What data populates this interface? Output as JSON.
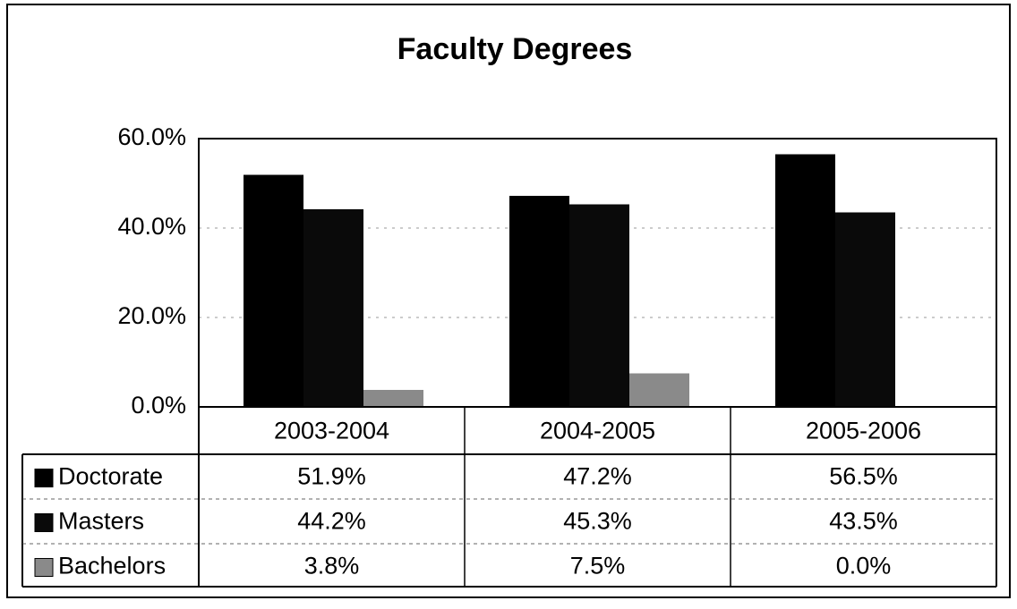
{
  "chart_data": {
    "type": "bar",
    "title": "Faculty Degrees",
    "categories": [
      "2003-2004",
      "2004-2005",
      "2005-2006"
    ],
    "series": [
      {
        "name": "Doctorate",
        "color": "#000000",
        "values": [
          51.9,
          47.2,
          56.5
        ],
        "value_labels": [
          "51.9%",
          "47.2%",
          "56.5%"
        ]
      },
      {
        "name": "Masters",
        "color": "#0a0a0a",
        "values": [
          44.2,
          45.3,
          43.5
        ],
        "value_labels": [
          "44.2%",
          "45.3%",
          "43.5%"
        ]
      },
      {
        "name": "Bachelors",
        "color": "#8a8a8a",
        "values": [
          3.8,
          7.5,
          0.0
        ],
        "value_labels": [
          "3.8%",
          "7.5%",
          "0.0%"
        ]
      }
    ],
    "ylim": [
      0,
      60
    ],
    "yticks": [
      {
        "value": 0,
        "label": "0.0%"
      },
      {
        "value": 20,
        "label": "20.0%"
      },
      {
        "value": 40,
        "label": "40.0%"
      },
      {
        "value": 60,
        "label": "60.0%"
      }
    ],
    "grid": true
  }
}
